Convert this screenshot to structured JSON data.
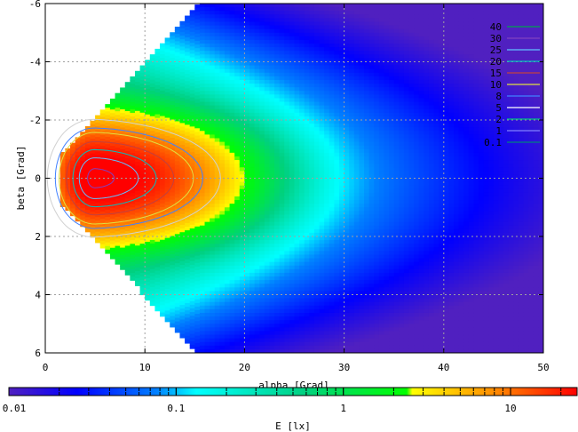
{
  "chart_data": {
    "type": "heatmap",
    "title": "",
    "xlabel": "alpha [Grad]",
    "ylabel": "beta [Grad]",
    "xlim": [
      0,
      50
    ],
    "ylim": [
      -6,
      6
    ],
    "y_reversed": true,
    "x_ticks": [
      "0",
      "10",
      "20",
      "30",
      "40",
      "50"
    ],
    "y_ticks": [
      "-6",
      "-4",
      "-2",
      "0",
      "2",
      "4",
      "6"
    ],
    "grid": true,
    "legend_position": "top-right",
    "contour_levels": [
      {
        "label": "40",
        "value": 40,
        "color": "#00a050"
      },
      {
        "label": "30",
        "value": 30,
        "color": "#8040c0"
      },
      {
        "label": "25",
        "value": 25,
        "color": "#60c0ff"
      },
      {
        "label": "20",
        "value": 20,
        "color": "#00c0c0"
      },
      {
        "label": "15",
        "value": 15,
        "color": "#c04040"
      },
      {
        "label": "10",
        "value": 10,
        "color": "#e0e040"
      },
      {
        "label": "8",
        "value": 8,
        "color": "#4080ff"
      },
      {
        "label": "5",
        "value": 5,
        "color": "#ffffff"
      },
      {
        "label": "2",
        "value": 2,
        "color": "#00c080"
      },
      {
        "label": "1",
        "value": 1,
        "color": "#8080ff"
      },
      {
        "label": "0.1",
        "value": 0.1,
        "color": "#008080"
      }
    ],
    "peak": {
      "alpha": 5,
      "beta": 0,
      "value": 30
    },
    "colorbar": {
      "label": "E [lx]",
      "scale": "log",
      "range": [
        0.01,
        25
      ],
      "tick_labels": [
        "0.01",
        "0.1",
        "1",
        "10"
      ],
      "tick_values": [
        0.01,
        0.1,
        1,
        10
      ]
    }
  }
}
